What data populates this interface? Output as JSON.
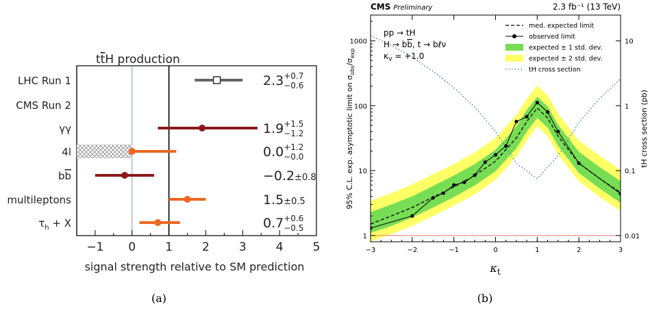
{
  "chart_data": [
    {
      "type": "scatter",
      "panel_label": "(a)",
      "title": "ttH production",
      "xlabel": "signal strength relative to SM prediction",
      "xlim": [
        -1.5,
        5
      ],
      "xticks": [
        -1,
        0,
        1,
        2,
        3,
        4,
        5
      ],
      "reference_lines": [
        0,
        1
      ],
      "rows": [
        {
          "label": "LHC Run 1",
          "value": 2.3,
          "err_minus": 0.6,
          "err_plus": 0.7,
          "text_main": "2.3",
          "text_up": "+0.7",
          "text_down": "−0.6",
          "color": "#666666",
          "marker": "open-square"
        },
        {
          "label": "CMS Run 2",
          "value": null,
          "text_main": "",
          "text_up": "",
          "text_down": ""
        },
        {
          "label": "γγ",
          "value": 1.9,
          "err_minus": 1.2,
          "err_plus": 1.5,
          "text_main": "1.9",
          "text_up": "+1.5",
          "text_down": "−1.2",
          "color": "#8b1a1a",
          "marker": "dot"
        },
        {
          "label": "4l",
          "value": 0.0,
          "err_minus": 0.0,
          "err_plus": 1.2,
          "text_main": "0.0",
          "text_up": "+1.2",
          "text_down": "−0.0",
          "color": "#ee6622",
          "marker": "dot",
          "hatched_range": [
            -1.5,
            0
          ]
        },
        {
          "label": "bb",
          "value": -0.2,
          "err_minus": 0.8,
          "err_plus": 0.8,
          "text_main": "−0.2",
          "text_sym": "±0.8",
          "color": "#8b1a1a",
          "marker": "dot"
        },
        {
          "label": "multileptons",
          "value": 1.5,
          "err_minus": 0.5,
          "err_plus": 0.5,
          "text_main": "1.5",
          "text_sym": "±0.5",
          "color": "#ee6622",
          "marker": "dot"
        },
        {
          "label": "τh + X",
          "value": 0.7,
          "err_minus": 0.5,
          "err_plus": 0.6,
          "text_main": "0.7",
          "text_up": "+0.6",
          "text_down": "−0.5",
          "color": "#ee6622",
          "marker": "dot"
        }
      ]
    },
    {
      "type": "line",
      "panel_label": "(b)",
      "header_left": "CMS",
      "header_left_sub": "Preliminary",
      "header_right": "2.3 fb⁻¹ (13 TeV)",
      "xlabel": "κt",
      "ylabel_left": "95% C.L. exp. asymptotic limit on σobs/σexp",
      "ylabel_right": "tH cross section (pb)",
      "xlim": [
        -3,
        3
      ],
      "xticks": [
        "-3",
        "-2",
        "-1",
        "0",
        "1",
        "2",
        "3"
      ],
      "ylim_left": [
        0.8,
        2500
      ],
      "yscale_left": "log",
      "yticks_left": [
        "1",
        "10",
        "100",
        "1000"
      ],
      "ylim_right": [
        0.008,
        25
      ],
      "yscale_right": "log",
      "yticks_right": [
        "0.01",
        "0.1",
        "1",
        "10"
      ],
      "annotations": [
        "pp → tH",
        "H → bb, t → bℓν",
        "κV = +1.0"
      ],
      "legend": [
        {
          "label": "med. expected limit",
          "style": "dashed"
        },
        {
          "label": "observed limit",
          "style": "solid-dots"
        },
        {
          "label": "expected ± 1 std. dev.",
          "style": "green-band"
        },
        {
          "label": "expected ± 2 std. dev.",
          "style": "yellow-band"
        },
        {
          "label": "tH cross section",
          "style": "blue-dotted"
        }
      ],
      "legend_position": "top-right",
      "horizontal_line": 1,
      "series": [
        {
          "name": "observed limit",
          "x": [
            -3,
            -2,
            -1.5,
            -1.25,
            -1,
            -0.75,
            -0.5,
            -0.25,
            0,
            0.25,
            0.5,
            0.75,
            1,
            1.25,
            1.5,
            2,
            3
          ],
          "y": [
            1.3,
            2.0,
            3.8,
            4.5,
            6.0,
            6.6,
            8.5,
            13.5,
            17.5,
            24,
            57,
            68,
            112,
            80,
            40,
            13,
            4.4
          ]
        },
        {
          "name": "med. expected limit",
          "x": [
            -3,
            -2.5,
            -2,
            -1.5,
            -1,
            -0.5,
            0,
            0.5,
            0.75,
            1,
            1.25,
            1.5,
            2,
            2.5,
            3
          ],
          "y": [
            1.5,
            2.0,
            2.7,
            3.9,
            5.6,
            8.4,
            14,
            32,
            57,
            92,
            65,
            34,
            13,
            7.5,
            4.6
          ]
        },
        {
          "name": "expected ± 1 std. dev.",
          "x": [
            -3,
            -2.5,
            -2,
            -1.5,
            -1,
            -0.5,
            0,
            0.5,
            0.75,
            1,
            1.25,
            1.5,
            2,
            2.5,
            3
          ],
          "low": [
            1.1,
            1.4,
            1.9,
            2.7,
            3.9,
            5.9,
            9.8,
            22,
            40,
            65,
            46,
            24,
            9.2,
            5.3,
            3.2
          ],
          "high": [
            2.3,
            3.0,
            4.0,
            5.8,
            8.4,
            12.6,
            21,
            48,
            86,
            138,
            98,
            51,
            19.5,
            11.3,
            6.9
          ]
        },
        {
          "name": "expected ± 2 std. dev.",
          "x": [
            -3,
            -2.5,
            -2,
            -1.5,
            -1,
            -0.5,
            0,
            0.5,
            0.75,
            1,
            1.25,
            1.5,
            2,
            2.5,
            3
          ],
          "low": [
            0.8,
            1.05,
            1.4,
            2.0,
            2.9,
            4.3,
            7.2,
            16.5,
            29,
            48,
            34,
            17.6,
            6.8,
            3.9,
            2.4
          ],
          "high": [
            3.4,
            4.5,
            6.1,
            8.8,
            12.6,
            19,
            32,
            72,
            128,
            205,
            146,
            76,
            29,
            17,
            10.3
          ]
        },
        {
          "name": "tH cross section",
          "x": [
            -3,
            -2.5,
            -2,
            -1.5,
            -1,
            -0.5,
            0,
            0.5,
            1,
            1.5,
            2,
            2.5,
            3
          ],
          "y": [
            12,
            8.5,
            5.6,
            3.4,
            1.9,
            0.95,
            0.4,
            0.13,
            0.075,
            0.17,
            0.55,
            1.3,
            2.6
          ]
        }
      ]
    }
  ]
}
